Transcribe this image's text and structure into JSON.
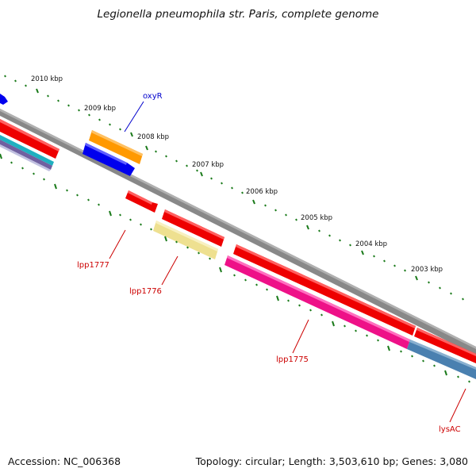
{
  "title": "Legionella pneumophila str. Paris, complete genome",
  "footer": {
    "accession": "Accession: NC_006368",
    "summary": "Topology: circular; Length: 3,503,610 bp; Genes: 3,080"
  },
  "kbp_labels": [
    "2010 kbp",
    "2009 kbp",
    "2008 kbp",
    "2007 kbp",
    "2006 kbp",
    "2005 kbp",
    "2004 kbp",
    "2003 kbp"
  ],
  "gene_labels": [
    {
      "text": "oxyR",
      "color": "#0000cc"
    },
    {
      "text": "lpp1777",
      "color": "#cc0000"
    },
    {
      "text": "lpp1776",
      "color": "#cc0000"
    },
    {
      "text": "lpp1775",
      "color": "#cc0000"
    },
    {
      "text": "lysAC",
      "color": "#cc0000"
    }
  ],
  "colors": {
    "backbone": "#888888",
    "tick": "#1a7a1a",
    "forward_gene": "#ee0000",
    "reverse_gene": "#ee0000",
    "oxyR_gene": "#0000ee",
    "orange_gene": "#ff9900",
    "pale_yellow_gene": "#eee090",
    "magenta_gene": "#ee1188",
    "steel_blue_gene": "#4a80b0",
    "cyan_feature": "#20b0c0",
    "purple_feature": "#7060a0"
  }
}
